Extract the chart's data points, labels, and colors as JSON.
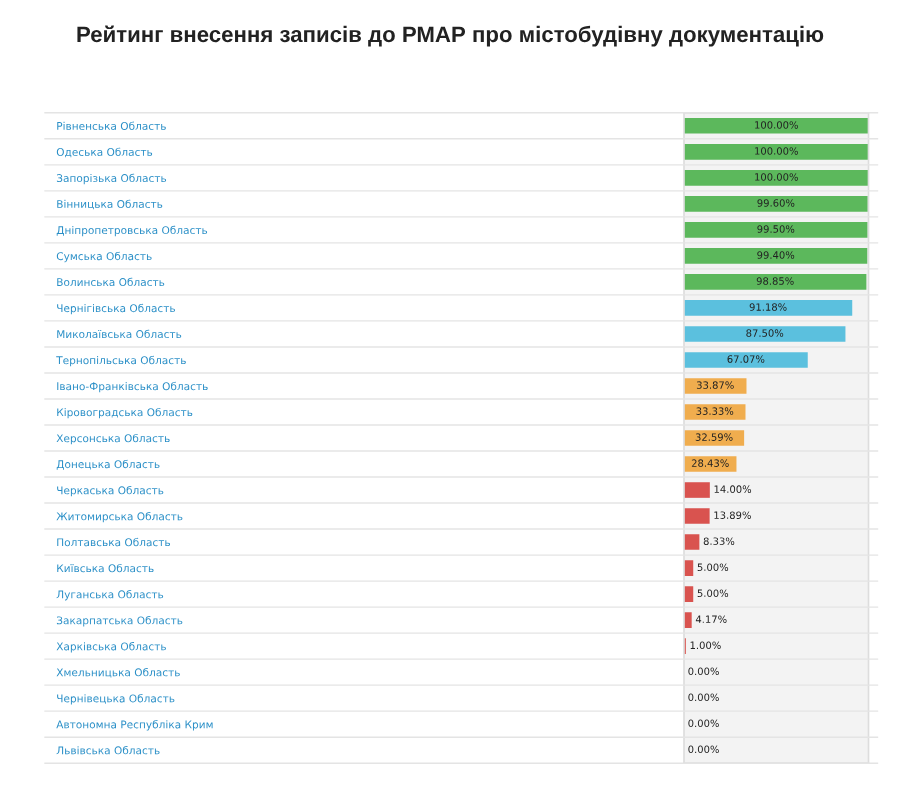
{
  "chart_data": {
    "type": "bar",
    "orientation": "horizontal",
    "title": "Рейтинг внесення записів до РМАР про містобудівну документацію",
    "categories": [
      "Рівненська Область",
      "Одеська Область",
      "Запорізька Область",
      "Вінницька Область",
      "Дніпропетровська Область",
      "Сумська Область",
      "Волинська Область",
      "Чернігівська Область",
      "Миколаївська Область",
      "Тернопільська Область",
      "Івано-Франківська Область",
      "Кіровоградська Область",
      "Херсонська Область",
      "Донецька Область",
      "Черкаська Область",
      "Житомирська Область",
      "Полтавська Область",
      "Київська Область",
      "Луганська Область",
      "Закарпатська Область",
      "Харківська Область",
      "Хмельницька Область",
      "Чернівецька Область",
      "Автономна Республіка Крим",
      "Львівська Область"
    ],
    "values": [
      100,
      100,
      100,
      99.6,
      99.5,
      99.4,
      98.85,
      91.18,
      87.5,
      67.07,
      33.87,
      33.33,
      32.59,
      28.43,
      14.0,
      13.89,
      8.33,
      5.0,
      5.0,
      4.17,
      1.0,
      0.0,
      0.0,
      0.0,
      0.0
    ],
    "value_labels": [
      "100.00%",
      "100.00%",
      "100.00%",
      "99.60%",
      "99.50%",
      "99.40%",
      "98.85%",
      "91.18%",
      "87.50%",
      "67.07%",
      "33.87%",
      "33.33%",
      "32.59%",
      "28.43%",
      "14.00%",
      "13.89%",
      "8.33%",
      "5.00%",
      "5.00%",
      "4.17%",
      "1.00%",
      "0.00%",
      "0.00%",
      "0.00%",
      "0.00%"
    ],
    "colors": [
      "#5cb85c",
      "#5cb85c",
      "#5cb85c",
      "#5cb85c",
      "#5cb85c",
      "#5cb85c",
      "#5cb85c",
      "#5bc0de",
      "#5bc0de",
      "#5bc0de",
      "#f0ad4e",
      "#f0ad4e",
      "#f0ad4e",
      "#f0ad4e",
      "#d9534f",
      "#d9534f",
      "#d9534f",
      "#d9534f",
      "#d9534f",
      "#d9534f",
      "#d9534f",
      "#d9534f",
      "#d9534f",
      "#d9534f",
      "#d9534f"
    ],
    "xlim": [
      0,
      100
    ],
    "tick_labels": "y",
    "grid": false,
    "legend": false
  }
}
